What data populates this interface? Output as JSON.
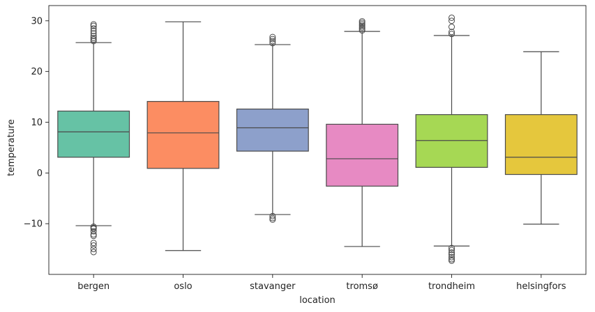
{
  "chart_data": {
    "type": "box",
    "xlabel": "location",
    "ylabel": "temperature",
    "ylim": [
      -20,
      33
    ],
    "yticks": [
      -10,
      0,
      10,
      20,
      30
    ],
    "grid": false,
    "legend": "none",
    "categories": [
      "bergen",
      "oslo",
      "stavanger",
      "tromsø",
      "trondheim",
      "helsingfors"
    ],
    "boxes": [
      {
        "category": "bergen",
        "color": "#66c2a5",
        "whisker_low": -10.4,
        "q1": 3.1,
        "median": 8.1,
        "q3": 12.2,
        "whisker_high": 25.7,
        "outliers": [
          -10.6,
          -10.8,
          -11.0,
          -11.5,
          -12.1,
          -12.4,
          -13.8,
          -14.3,
          -15.0,
          -15.6,
          26.0,
          26.3,
          26.6,
          27.0,
          27.5,
          28.0,
          28.5,
          29.0,
          29.3
        ]
      },
      {
        "category": "oslo",
        "color": "#fc8d62",
        "whisker_low": -15.3,
        "q1": 0.9,
        "median": 7.9,
        "q3": 14.1,
        "whisker_high": 29.8,
        "outliers": []
      },
      {
        "category": "stavanger",
        "color": "#8da0cb",
        "whisker_low": -8.2,
        "q1": 4.3,
        "median": 8.9,
        "q3": 12.6,
        "whisker_high": 25.3,
        "outliers": [
          -8.5,
          -8.9,
          -9.2,
          25.6,
          26.0,
          26.4,
          26.8
        ]
      },
      {
        "category": "tromsø",
        "color": "#e78ac3",
        "whisker_low": -14.5,
        "q1": -2.6,
        "median": 2.8,
        "q3": 9.6,
        "whisker_high": 27.9,
        "outliers": [
          28.1,
          28.4,
          28.7,
          29.0,
          29.3,
          29.6,
          29.9
        ]
      },
      {
        "category": "trondheim",
        "color": "#a6d854",
        "whisker_low": -14.4,
        "q1": 1.1,
        "median": 6.4,
        "q3": 11.5,
        "whisker_high": 27.1,
        "outliers": [
          -14.8,
          -15.2,
          -15.7,
          -16.1,
          -16.6,
          -17.0,
          -17.3,
          27.4,
          27.8,
          28.8,
          30.0,
          30.6
        ]
      },
      {
        "category": "helsingfors",
        "color": "#e5c73d",
        "whisker_low": -10.1,
        "q1": -0.3,
        "median": 3.1,
        "q3": 11.5,
        "whisker_high": 23.9,
        "outliers": []
      }
    ]
  }
}
